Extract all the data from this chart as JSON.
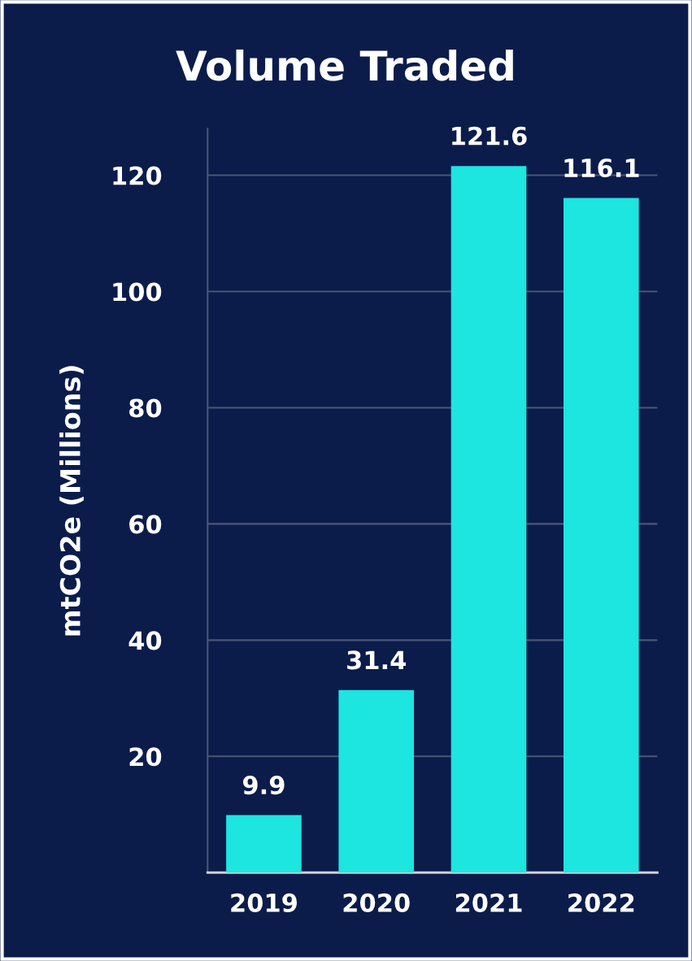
{
  "chart_data": {
    "type": "bar",
    "title": "Volume Traded",
    "ylabel": "mtCO2e (Millions)",
    "categories": [
      "2019",
      "2020",
      "2021",
      "2022"
    ],
    "values": [
      9.9,
      31.4,
      121.6,
      116.1
    ],
    "color": "#1de5e0",
    "ylim": [
      0,
      128
    ],
    "yticks": [
      20,
      40,
      60,
      80,
      100,
      120
    ],
    "grid": "y",
    "data_labels": true
  }
}
